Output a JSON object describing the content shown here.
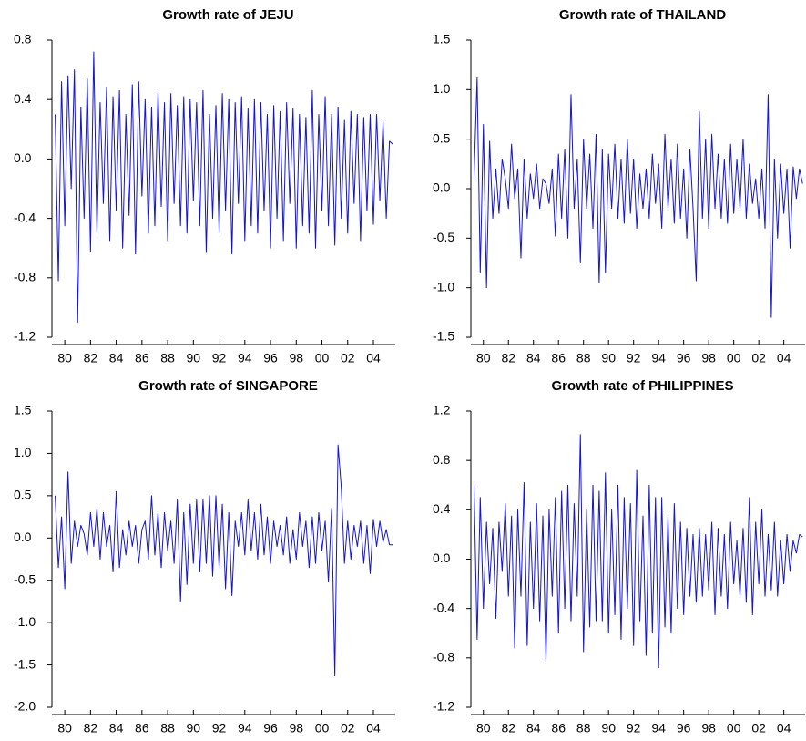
{
  "chart_data": [
    {
      "type": "line",
      "title": "Growth rate of JEJU",
      "color": "#1414d2",
      "x": [
        1979.25,
        1979.5,
        1979.75,
        1980,
        1980.25,
        1980.5,
        1980.75,
        1981,
        1981.25,
        1981.5,
        1981.75,
        1982,
        1982.25,
        1982.5,
        1982.75,
        1983,
        1983.25,
        1983.5,
        1983.75,
        1984,
        1984.25,
        1984.5,
        1984.75,
        1985,
        1985.25,
        1985.5,
        1985.75,
        1986,
        1986.25,
        1986.5,
        1986.75,
        1987,
        1987.25,
        1987.5,
        1987.75,
        1988,
        1988.25,
        1988.5,
        1988.75,
        1989,
        1989.25,
        1989.5,
        1989.75,
        1990,
        1990.25,
        1990.5,
        1990.75,
        1991,
        1991.25,
        1991.5,
        1991.75,
        1992,
        1992.25,
        1992.5,
        1992.75,
        1993,
        1993.25,
        1993.5,
        1993.75,
        1994,
        1994.25,
        1994.5,
        1994.75,
        1995,
        1995.25,
        1995.5,
        1995.75,
        1996,
        1996.25,
        1996.5,
        1996.75,
        1997,
        1997.25,
        1997.5,
        1997.75,
        1998,
        1998.25,
        1998.5,
        1998.75,
        1999,
        1999.25,
        1999.5,
        1999.75,
        2000,
        2000.25,
        2000.5,
        2000.75,
        2001,
        2001.25,
        2001.5,
        2001.75,
        2002,
        2002.25,
        2002.5,
        2002.75,
        2003,
        2003.25,
        2003.5,
        2003.75,
        2004,
        2004.25,
        2004.5,
        2004.75,
        2005,
        2005.25,
        2005.5
      ],
      "values": [
        0.3,
        -0.82,
        0.52,
        -0.45,
        0.56,
        -0.2,
        0.6,
        -1.1,
        0.35,
        -0.4,
        0.54,
        -0.62,
        0.72,
        -0.5,
        0.38,
        -0.3,
        0.48,
        -0.55,
        0.42,
        -0.35,
        0.46,
        -0.6,
        0.3,
        -0.38,
        0.5,
        -0.64,
        0.52,
        -0.25,
        0.4,
        -0.5,
        0.35,
        -0.45,
        0.46,
        -0.32,
        0.38,
        -0.55,
        0.44,
        -0.3,
        0.36,
        -0.45,
        0.42,
        -0.5,
        0.4,
        -0.28,
        0.38,
        -0.45,
        0.46,
        -0.63,
        0.3,
        -0.4,
        0.36,
        -0.5,
        0.44,
        -0.35,
        0.4,
        -0.64,
        0.38,
        -0.3,
        0.42,
        -0.55,
        0.34,
        -0.45,
        0.4,
        -0.5,
        0.38,
        -0.35,
        0.3,
        -0.6,
        0.36,
        -0.4,
        0.32,
        -0.55,
        0.38,
        -0.3,
        0.34,
        -0.6,
        0.3,
        -0.45,
        0.28,
        -0.5,
        0.46,
        -0.6,
        0.3,
        -0.35,
        0.42,
        -0.45,
        0.3,
        -0.58,
        0.35,
        -0.4,
        0.26,
        -0.5,
        0.32,
        -0.3,
        0.3,
        -0.55,
        0.28,
        -0.35,
        0.3,
        -0.44,
        0.3,
        -0.28,
        0.25,
        -0.4,
        0.12,
        0.1
      ],
      "xlim": [
        1979.0,
        2005.7
      ],
      "xticks": [
        {
          "value": 1980,
          "label": "80"
        },
        {
          "value": 1982,
          "label": "82"
        },
        {
          "value": 1984,
          "label": "84"
        },
        {
          "value": 1986,
          "label": "86"
        },
        {
          "value": 1988,
          "label": "88"
        },
        {
          "value": 1990,
          "label": "90"
        },
        {
          "value": 1992,
          "label": "92"
        },
        {
          "value": 1994,
          "label": "94"
        },
        {
          "value": 1996,
          "label": "96"
        },
        {
          "value": 1998,
          "label": "98"
        },
        {
          "value": 2000,
          "label": "00"
        },
        {
          "value": 2002,
          "label": "02"
        },
        {
          "value": 2004,
          "label": "04"
        }
      ],
      "ylim": [
        -1.2,
        0.8
      ],
      "yticks": [
        -1.2,
        -0.8,
        -0.4,
        {
          "value": 0,
          "label": "0.0"
        },
        0.4,
        0.8
      ]
    },
    {
      "type": "line",
      "title": "Growth rate of THAILAND",
      "color": "#1414d2",
      "x": [
        1979.25,
        1979.5,
        1979.75,
        1980,
        1980.25,
        1980.5,
        1980.75,
        1981,
        1981.25,
        1981.5,
        1981.75,
        1982,
        1982.25,
        1982.5,
        1982.75,
        1983,
        1983.25,
        1983.5,
        1983.75,
        1984,
        1984.25,
        1984.5,
        1984.75,
        1985,
        1985.25,
        1985.5,
        1985.75,
        1986,
        1986.25,
        1986.5,
        1986.75,
        1987,
        1987.25,
        1987.5,
        1987.75,
        1988,
        1988.25,
        1988.5,
        1988.75,
        1989,
        1989.25,
        1989.5,
        1989.75,
        1990,
        1990.25,
        1990.5,
        1990.75,
        1991,
        1991.25,
        1991.5,
        1991.75,
        1992,
        1992.25,
        1992.5,
        1992.75,
        1993,
        1993.25,
        1993.5,
        1993.75,
        1994,
        1994.25,
        1994.5,
        1994.75,
        1995,
        1995.25,
        1995.5,
        1995.75,
        1996,
        1996.25,
        1996.5,
        1996.75,
        1997,
        1997.25,
        1997.5,
        1997.75,
        1998,
        1998.25,
        1998.5,
        1998.75,
        1999,
        1999.25,
        1999.5,
        1999.75,
        2000,
        2000.25,
        2000.5,
        2000.75,
        2001,
        2001.25,
        2001.5,
        2001.75,
        2002,
        2002.25,
        2002.5,
        2002.75,
        2003,
        2003.25,
        2003.5,
        2003.75,
        2004,
        2004.25,
        2004.5,
        2004.75,
        2005,
        2005.25,
        2005.5
      ],
      "values": [
        0.1,
        1.12,
        -0.85,
        0.65,
        -1.0,
        0.48,
        -0.3,
        0.2,
        -0.25,
        0.3,
        0.1,
        -0.2,
        0.45,
        -0.1,
        0.2,
        -0.7,
        0.3,
        -0.3,
        0.15,
        -0.1,
        0.25,
        -0.2,
        0.1,
        0.05,
        -0.15,
        0.2,
        -0.48,
        0.35,
        -0.3,
        0.4,
        -0.5,
        0.95,
        -0.2,
        0.3,
        -0.75,
        0.5,
        -0.2,
        0.35,
        -0.4,
        0.55,
        -0.95,
        0.4,
        -0.85,
        0.35,
        -0.2,
        0.45,
        -0.3,
        0.3,
        -0.35,
        0.5,
        -0.25,
        0.3,
        -0.4,
        0.15,
        -0.2,
        0.2,
        -0.3,
        0.35,
        -0.15,
        0.25,
        -0.4,
        0.55,
        -0.2,
        0.3,
        -0.35,
        0.45,
        -0.3,
        0.2,
        -0.5,
        0.4,
        -0.2,
        -0.93,
        0.78,
        -0.3,
        0.5,
        -0.4,
        0.55,
        -0.2,
        0.35,
        -0.3,
        0.3,
        -0.35,
        0.45,
        -0.25,
        0.3,
        -0.2,
        0.5,
        -0.3,
        0.25,
        -0.15,
        0.1,
        -0.3,
        0.2,
        -0.4,
        0.95,
        -1.3,
        0.3,
        -0.5,
        0.25,
        -0.25,
        0.2,
        -0.6,
        0.22,
        -0.1,
        0.2,
        0.05
      ],
      "xlim": [
        1979.0,
        2005.7
      ],
      "xticks": [
        {
          "value": 1980,
          "label": "80"
        },
        {
          "value": 1982,
          "label": "82"
        },
        {
          "value": 1984,
          "label": "84"
        },
        {
          "value": 1986,
          "label": "86"
        },
        {
          "value": 1988,
          "label": "88"
        },
        {
          "value": 1990,
          "label": "90"
        },
        {
          "value": 1992,
          "label": "92"
        },
        {
          "value": 1994,
          "label": "94"
        },
        {
          "value": 1996,
          "label": "96"
        },
        {
          "value": 1998,
          "label": "98"
        },
        {
          "value": 2000,
          "label": "00"
        },
        {
          "value": 2002,
          "label": "02"
        },
        {
          "value": 2004,
          "label": "04"
        }
      ],
      "ylim": [
        -1.5,
        1.5
      ],
      "yticks": [
        -1.5,
        {
          "value": -1,
          "label": "-1.0"
        },
        -0.5,
        {
          "value": 0,
          "label": "0.0"
        },
        0.5,
        {
          "value": 1,
          "label": "1.0"
        },
        1.5
      ]
    },
    {
      "type": "line",
      "title": "Growth rate of SINGAPORE",
      "color": "#1414d2",
      "x": [
        1979.25,
        1979.5,
        1979.75,
        1980,
        1980.25,
        1980.5,
        1980.75,
        1981,
        1981.25,
        1981.5,
        1981.75,
        1982,
        1982.25,
        1982.5,
        1982.75,
        1983,
        1983.25,
        1983.5,
        1983.75,
        1984,
        1984.25,
        1984.5,
        1984.75,
        1985,
        1985.25,
        1985.5,
        1985.75,
        1986,
        1986.25,
        1986.5,
        1986.75,
        1987,
        1987.25,
        1987.5,
        1987.75,
        1988,
        1988.25,
        1988.5,
        1988.75,
        1989,
        1989.25,
        1989.5,
        1989.75,
        1990,
        1990.25,
        1990.5,
        1990.75,
        1991,
        1991.25,
        1991.5,
        1991.75,
        1992,
        1992.25,
        1992.5,
        1992.75,
        1993,
        1993.25,
        1993.5,
        1993.75,
        1994,
        1994.25,
        1994.5,
        1994.75,
        1995,
        1995.25,
        1995.5,
        1995.75,
        1996,
        1996.25,
        1996.5,
        1996.75,
        1997,
        1997.25,
        1997.5,
        1997.75,
        1998,
        1998.25,
        1998.5,
        1998.75,
        1999,
        1999.25,
        1999.5,
        1999.75,
        2000,
        2000.25,
        2000.5,
        2000.75,
        2001,
        2001.25,
        2001.5,
        2001.75,
        2002,
        2002.25,
        2002.5,
        2002.75,
        2003,
        2003.25,
        2003.5,
        2003.75,
        2004,
        2004.25,
        2004.5,
        2004.75,
        2005,
        2005.25,
        2005.5
      ],
      "values": [
        0.5,
        -0.35,
        0.25,
        -0.6,
        0.78,
        -0.3,
        0.2,
        -0.1,
        0.15,
        0.05,
        -0.2,
        0.3,
        -0.1,
        0.35,
        -0.25,
        0.3,
        -0.1,
        0.15,
        -0.4,
        0.55,
        -0.35,
        0.1,
        -0.2,
        0.2,
        -0.1,
        0.15,
        -0.3,
        0.1,
        0.2,
        -0.25,
        0.5,
        -0.2,
        0.3,
        -0.35,
        0.3,
        -0.15,
        0.2,
        -0.3,
        0.45,
        -0.75,
        0.3,
        -0.55,
        0.4,
        -0.3,
        0.45,
        -0.4,
        0.45,
        -0.3,
        0.5,
        -0.45,
        0.5,
        -0.35,
        0.4,
        -0.6,
        0.3,
        -0.68,
        0.2,
        -0.1,
        0.3,
        -0.2,
        0.45,
        -0.15,
        0.3,
        -0.25,
        0.4,
        -0.2,
        0.25,
        -0.3,
        0.2,
        -0.1,
        0.15,
        -0.2,
        0.25,
        -0.3,
        0.1,
        -0.25,
        0.3,
        -0.1,
        0.2,
        -0.35,
        0.25,
        -0.3,
        0.3,
        -0.15,
        0.2,
        -0.52,
        0.35,
        -1.63,
        1.1,
        0.6,
        -0.3,
        0.2,
        -0.25,
        0.15,
        -0.1,
        0.2,
        -0.3,
        0.15,
        -0.42,
        0.22,
        -0.1,
        0.2,
        -0.05,
        0.1,
        -0.08,
        -0.08
      ],
      "xlim": [
        1979.0,
        2005.7
      ],
      "xticks": [
        {
          "value": 1980,
          "label": "80"
        },
        {
          "value": 1982,
          "label": "82"
        },
        {
          "value": 1984,
          "label": "84"
        },
        {
          "value": 1986,
          "label": "86"
        },
        {
          "value": 1988,
          "label": "88"
        },
        {
          "value": 1990,
          "label": "90"
        },
        {
          "value": 1992,
          "label": "92"
        },
        {
          "value": 1994,
          "label": "94"
        },
        {
          "value": 1996,
          "label": "96"
        },
        {
          "value": 1998,
          "label": "98"
        },
        {
          "value": 2000,
          "label": "00"
        },
        {
          "value": 2002,
          "label": "02"
        },
        {
          "value": 2004,
          "label": "04"
        }
      ],
      "ylim": [
        -2,
        1.5
      ],
      "yticks": [
        {
          "value": -2,
          "label": "-2.0"
        },
        -1.5,
        {
          "value": -1,
          "label": "-1.0"
        },
        -0.5,
        {
          "value": 0,
          "label": "0.0"
        },
        0.5,
        {
          "value": 1,
          "label": "1.0"
        },
        1.5
      ]
    },
    {
      "type": "line",
      "title": "Growth rate of PHILIPPINES",
      "color": "#1414d2",
      "x": [
        1979.25,
        1979.5,
        1979.75,
        1980,
        1980.25,
        1980.5,
        1980.75,
        1981,
        1981.25,
        1981.5,
        1981.75,
        1982,
        1982.25,
        1982.5,
        1982.75,
        1983,
        1983.25,
        1983.5,
        1983.75,
        1984,
        1984.25,
        1984.5,
        1984.75,
        1985,
        1985.25,
        1985.5,
        1985.75,
        1986,
        1986.25,
        1986.5,
        1986.75,
        1987,
        1987.25,
        1987.5,
        1987.75,
        1988,
        1988.25,
        1988.5,
        1988.75,
        1989,
        1989.25,
        1989.5,
        1989.75,
        1990,
        1990.25,
        1990.5,
        1990.75,
        1991,
        1991.25,
        1991.5,
        1991.75,
        1992,
        1992.25,
        1992.5,
        1992.75,
        1993,
        1993.25,
        1993.5,
        1993.75,
        1994,
        1994.25,
        1994.5,
        1994.75,
        1995,
        1995.25,
        1995.5,
        1995.75,
        1996,
        1996.25,
        1996.5,
        1996.75,
        1997,
        1997.25,
        1997.5,
        1997.75,
        1998,
        1998.25,
        1998.5,
        1998.75,
        1999,
        1999.25,
        1999.5,
        1999.75,
        2000,
        2000.25,
        2000.5,
        2000.75,
        2001,
        2001.25,
        2001.5,
        2001.75,
        2002,
        2002.25,
        2002.5,
        2002.75,
        2003,
        2003.25,
        2003.5,
        2003.75,
        2004,
        2004.25,
        2004.5,
        2004.75,
        2005,
        2005.25,
        2005.5
      ],
      "values": [
        0.62,
        -0.65,
        0.5,
        -0.4,
        0.3,
        -0.2,
        0.25,
        -0.48,
        0.3,
        -0.1,
        0.45,
        -0.3,
        0.35,
        -0.72,
        0.4,
        -0.3,
        0.62,
        -0.7,
        0.3,
        -0.4,
        0.45,
        -0.5,
        0.35,
        -0.83,
        0.4,
        -0.3,
        0.5,
        -0.6,
        0.55,
        -0.4,
        0.6,
        -0.5,
        0.45,
        -0.3,
        1.01,
        -0.75,
        0.4,
        -0.55,
        0.6,
        -0.5,
        0.55,
        -0.5,
        0.7,
        -0.6,
        0.4,
        -0.45,
        0.6,
        -0.65,
        0.5,
        -0.4,
        0.45,
        -0.7,
        0.72,
        -0.5,
        0.35,
        -0.78,
        0.6,
        -0.6,
        0.5,
        -0.88,
        0.5,
        -0.55,
        0.35,
        -0.6,
        0.45,
        -0.4,
        0.3,
        -0.45,
        0.25,
        -0.3,
        0.2,
        -0.35,
        0.25,
        -0.3,
        0.2,
        -0.25,
        0.3,
        -0.45,
        0.25,
        -0.3,
        0.2,
        -0.4,
        0.3,
        -0.2,
        0.15,
        -0.3,
        0.25,
        -0.35,
        0.5,
        -0.45,
        0.3,
        -0.2,
        0.4,
        -0.3,
        0.2,
        -0.25,
        0.3,
        -0.3,
        0.15,
        -0.2,
        0.2,
        -0.1,
        0.15,
        0.05,
        0.2,
        0.18
      ],
      "xlim": [
        1979.0,
        2005.7
      ],
      "xticks": [
        {
          "value": 1980,
          "label": "80"
        },
        {
          "value": 1982,
          "label": "82"
        },
        {
          "value": 1984,
          "label": "84"
        },
        {
          "value": 1986,
          "label": "86"
        },
        {
          "value": 1988,
          "label": "88"
        },
        {
          "value": 1990,
          "label": "90"
        },
        {
          "value": 1992,
          "label": "92"
        },
        {
          "value": 1994,
          "label": "94"
        },
        {
          "value": 1996,
          "label": "96"
        },
        {
          "value": 1998,
          "label": "98"
        },
        {
          "value": 2000,
          "label": "00"
        },
        {
          "value": 2002,
          "label": "02"
        },
        {
          "value": 2004,
          "label": "04"
        }
      ],
      "ylim": [
        -1.2,
        1.2
      ],
      "yticks": [
        -1.2,
        -0.8,
        -0.4,
        {
          "value": 0,
          "label": "0.0"
        },
        0.4,
        0.8,
        1.2
      ]
    }
  ]
}
